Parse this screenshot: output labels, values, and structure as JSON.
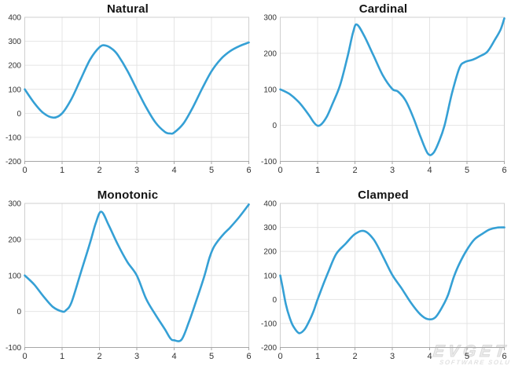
{
  "watermark": {
    "line1": "EVGET",
    "line2": "SOFTWARE SOLUTIONS"
  },
  "style": {
    "curve_color": "#35a0d5",
    "grid_color": "#e4e4e4",
    "border_color": "#cfcfcf",
    "axis_color": "#a6a6a6",
    "label_color": "#333333",
    "title_color": "#141414"
  },
  "chart_data": [
    {
      "type": "line",
      "title": "Natural",
      "xlabel": "",
      "ylabel": "",
      "xlim": [
        0,
        6
      ],
      "ylim": [
        -200,
        400
      ],
      "x_ticks": [
        0,
        1,
        2,
        3,
        4,
        5,
        6
      ],
      "y_ticks": [
        400,
        300,
        200,
        100,
        0,
        -100,
        -200
      ],
      "grid": true,
      "legend": false,
      "points": [
        [
          0,
          100
        ],
        [
          0.25,
          44
        ],
        [
          0.5,
          1
        ],
        [
          0.77,
          -18
        ],
        [
          1,
          0
        ],
        [
          1.25,
          60
        ],
        [
          1.5,
          143
        ],
        [
          1.75,
          224
        ],
        [
          2,
          275
        ],
        [
          2.15,
          283
        ],
        [
          2.35,
          267
        ],
        [
          2.5,
          241
        ],
        [
          2.75,
          177
        ],
        [
          3,
          100
        ],
        [
          3.25,
          25
        ],
        [
          3.5,
          -38
        ],
        [
          3.75,
          -77
        ],
        [
          3.9,
          -84
        ],
        [
          4,
          -80
        ],
        [
          4.25,
          -42
        ],
        [
          4.5,
          25
        ],
        [
          4.75,
          103
        ],
        [
          5,
          175
        ],
        [
          5.25,
          226
        ],
        [
          5.5,
          259
        ],
        [
          5.75,
          280
        ],
        [
          6,
          295
        ]
      ]
    },
    {
      "type": "line",
      "title": "Cardinal",
      "xlabel": "",
      "ylabel": "",
      "xlim": [
        0,
        6
      ],
      "ylim": [
        -100,
        300
      ],
      "x_ticks": [
        0,
        1,
        2,
        3,
        4,
        5,
        6
      ],
      "y_ticks": [
        300,
        200,
        100,
        0,
        -100
      ],
      "grid": true,
      "legend": false,
      "points": [
        [
          0,
          100
        ],
        [
          0.25,
          87
        ],
        [
          0.5,
          64
        ],
        [
          0.75,
          31
        ],
        [
          0.9,
          8
        ],
        [
          1,
          -1
        ],
        [
          1.1,
          3
        ],
        [
          1.25,
          25
        ],
        [
          1.4,
          60
        ],
        [
          1.6,
          111
        ],
        [
          1.8,
          190
        ],
        [
          1.95,
          258
        ],
        [
          2.05,
          280
        ],
        [
          2.25,
          248
        ],
        [
          2.5,
          193
        ],
        [
          2.75,
          138
        ],
        [
          3,
          101
        ],
        [
          3.15,
          94
        ],
        [
          3.35,
          70
        ],
        [
          3.55,
          25
        ],
        [
          3.75,
          -30
        ],
        [
          3.95,
          -78
        ],
        [
          4.1,
          -77
        ],
        [
          4.25,
          -45
        ],
        [
          4.4,
          0
        ],
        [
          4.6,
          90
        ],
        [
          4.8,
          160
        ],
        [
          4.95,
          176
        ],
        [
          5.15,
          182
        ],
        [
          5.35,
          192
        ],
        [
          5.55,
          205
        ],
        [
          5.75,
          238
        ],
        [
          5.9,
          266
        ],
        [
          6,
          297
        ]
      ]
    },
    {
      "type": "line",
      "title": "Monotonic",
      "xlabel": "",
      "ylabel": "",
      "xlim": [
        0,
        6
      ],
      "ylim": [
        -100,
        300
      ],
      "x_ticks": [
        0,
        1,
        2,
        3,
        4,
        5,
        6
      ],
      "y_ticks": [
        300,
        200,
        100,
        0,
        -100
      ],
      "grid": true,
      "legend": false,
      "points": [
        [
          0,
          100
        ],
        [
          0.25,
          75
        ],
        [
          0.5,
          42
        ],
        [
          0.75,
          13
        ],
        [
          1,
          0
        ],
        [
          1.1,
          3
        ],
        [
          1.25,
          25
        ],
        [
          1.5,
          108
        ],
        [
          1.75,
          191
        ],
        [
          1.9,
          245
        ],
        [
          2.05,
          277
        ],
        [
          2.25,
          239
        ],
        [
          2.5,
          184
        ],
        [
          2.75,
          137
        ],
        [
          3,
          100
        ],
        [
          3.25,
          35
        ],
        [
          3.5,
          -9
        ],
        [
          3.75,
          -49
        ],
        [
          3.9,
          -75
        ],
        [
          4,
          -80
        ],
        [
          4.2,
          -78
        ],
        [
          4.4,
          -28
        ],
        [
          4.6,
          32
        ],
        [
          4.8,
          95
        ],
        [
          4.95,
          150
        ],
        [
          5.07,
          180
        ],
        [
          5.3,
          212
        ],
        [
          5.5,
          233
        ],
        [
          5.75,
          263
        ],
        [
          6,
          297
        ]
      ]
    },
    {
      "type": "line",
      "title": "Clamped",
      "xlabel": "",
      "ylabel": "",
      "xlim": [
        0,
        6
      ],
      "ylim": [
        -200,
        400
      ],
      "x_ticks": [
        0,
        1,
        2,
        3,
        4,
        5,
        6
      ],
      "y_ticks": [
        400,
        300,
        200,
        100,
        0,
        -100,
        -200
      ],
      "grid": true,
      "legend": false,
      "points": [
        [
          0,
          100
        ],
        [
          0.07,
          45
        ],
        [
          0.15,
          -20
        ],
        [
          0.25,
          -75
        ],
        [
          0.35,
          -112
        ],
        [
          0.5,
          -140
        ],
        [
          0.65,
          -125
        ],
        [
          0.8,
          -82
        ],
        [
          0.9,
          -45
        ],
        [
          1,
          0
        ],
        [
          1.15,
          62
        ],
        [
          1.3,
          120
        ],
        [
          1.5,
          190
        ],
        [
          1.75,
          232
        ],
        [
          2,
          272
        ],
        [
          2.25,
          285
        ],
        [
          2.5,
          250
        ],
        [
          2.75,
          179
        ],
        [
          3,
          102
        ],
        [
          3.25,
          46
        ],
        [
          3.5,
          -14
        ],
        [
          3.75,
          -62
        ],
        [
          3.95,
          -82
        ],
        [
          4.15,
          -75
        ],
        [
          4.35,
          -28
        ],
        [
          4.5,
          22
        ],
        [
          4.65,
          95
        ],
        [
          4.8,
          150
        ],
        [
          5,
          207
        ],
        [
          5.2,
          250
        ],
        [
          5.4,
          272
        ],
        [
          5.6,
          291
        ],
        [
          5.8,
          299
        ],
        [
          6,
          300
        ]
      ]
    }
  ]
}
